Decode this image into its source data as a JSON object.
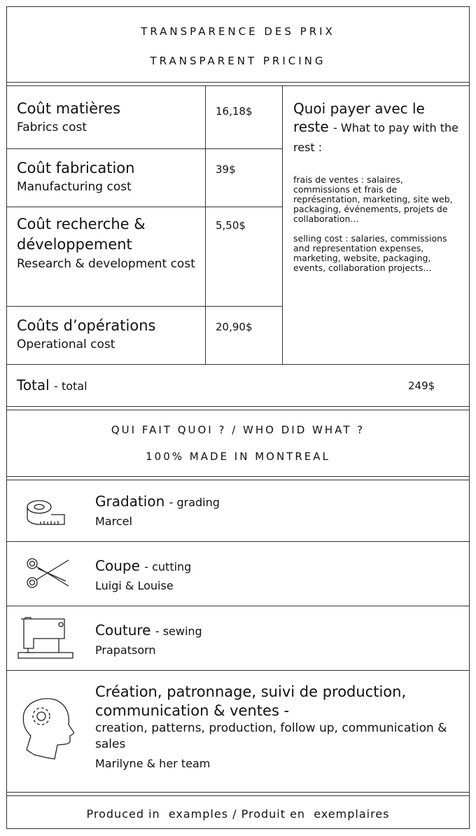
{
  "header": {
    "title_fr": "TRANSPARENCE DES PRIX",
    "title_en": "TRANSPARENT PRICING"
  },
  "costs": [
    {
      "fr": "Coût matières",
      "en": "Fabrics cost",
      "price": "16,18$"
    },
    {
      "fr": "Coût fabrication",
      "en": "Manufacturing cost",
      "price": "39$"
    },
    {
      "fr": "Coût recherche & développement",
      "en": "Research & development cost",
      "price": "5,50$"
    },
    {
      "fr": "Coûts d’opérations",
      "en": "Operational cost",
      "price": "20,90$"
    }
  ],
  "rest": {
    "title_fr": "Quoi payer avec le reste",
    "title_en": "- What to pay with the rest :",
    "note_fr": "frais de ventes : salaires, commissions et frais de représentation, marketing, site web, packaging, événements, projets de collaboration...",
    "note_en": "selling cost : salaries, commissions and representation expenses, marketing, website, packaging, events, collaboration projects..."
  },
  "total": {
    "label_fr": "Total",
    "label_en": "- total",
    "value": "249$"
  },
  "who": {
    "title": "QUI FAIT QUOI ? / WHO DID WHAT ?",
    "subtitle": "100% MADE IN MONTREAL"
  },
  "roles": [
    {
      "icon": "measuring-tape-icon",
      "fr": "Gradation",
      "en": "- grading",
      "name": "Marcel"
    },
    {
      "icon": "scissors-icon",
      "fr": "Coupe",
      "en": "- cutting",
      "name": "Luigi & Louise"
    },
    {
      "icon": "sewing-machine-icon",
      "fr": "Couture",
      "en": "- sewing",
      "name": "Prapatsorn"
    },
    {
      "icon": "head-gear-icon",
      "fr": "Création, patronnage, suivi de production, communication & ventes -",
      "en": "creation, patterns, production, follow up, communication & sales",
      "name": "Marilyne & her team"
    }
  ],
  "footer": {
    "text": "Produced in  examples / Produit en  exemplaires"
  }
}
